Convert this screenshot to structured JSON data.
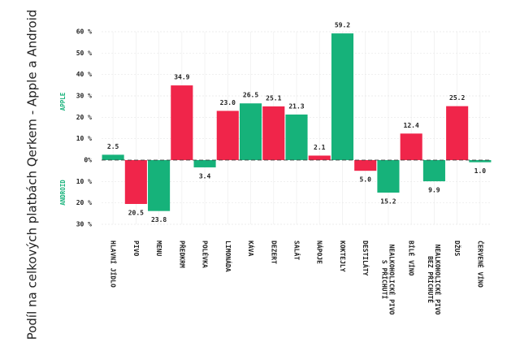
{
  "chart_data": {
    "type": "bar",
    "ylabel": "Podíl na celkových platbách Qerkem - Apple a Android",
    "side_labels": [
      "APPLE",
      "ANDROID"
    ],
    "categories": [
      "HLAVNÍ JÍDLO",
      "PIVO",
      "MENU",
      "PŘEDKRM",
      "POLÉVKA",
      "LIMONÁDA",
      "KÁVA",
      "DEZERT",
      "SALÁT",
      "NÁPOJE",
      "KOKTEJLY",
      "DESTILÁTY",
      [
        "NEALKOHOLICKÉ PIVO",
        "S PŘÍCHUTÍ"
      ],
      "BÍLÉ VÍNO",
      [
        "NEALKOHOLICKÉ PIVO",
        "BEZ PŘÍCHUTĚ"
      ],
      "DŽUS",
      "ČERVENÉ VÍNO"
    ],
    "values": [
      2.5,
      -20.5,
      -23.8,
      34.9,
      -3.4,
      23.0,
      26.5,
      25.1,
      21.3,
      2.1,
      59.2,
      -5.0,
      -15.2,
      12.4,
      -9.9,
      25.2,
      -1.0
    ],
    "value_labels": [
      "2.5",
      "20.5",
      "23.8",
      "34.9",
      "3.4",
      "23.0",
      "26.5",
      "25.1",
      "21.3",
      "2.1",
      "59.2",
      "5.0",
      "15.2",
      "12.4",
      "9.9",
      "25.2",
      "1.0"
    ],
    "colors": [
      "#16b27a",
      "#f0254a",
      "#16b27a",
      "#f0254a",
      "#16b27a",
      "#f0254a",
      "#16b27a",
      "#f0254a",
      "#16b27a",
      "#f0254a",
      "#16b27a",
      "#f0254a",
      "#16b27a",
      "#f0254a",
      "#16b27a",
      "#f0254a",
      "#16b27a"
    ],
    "ylim": [
      -30,
      60
    ],
    "yticks": [
      {
        "value": -30,
        "label": "30 %"
      },
      {
        "value": -20,
        "label": "20 %"
      },
      {
        "value": -10,
        "label": "10 %"
      },
      {
        "value": 0,
        "label": "0%"
      },
      {
        "value": 10,
        "label": "10 %"
      },
      {
        "value": 20,
        "label": "20 %"
      },
      {
        "value": 30,
        "label": "30 %"
      },
      {
        "value": 40,
        "label": "40 %"
      },
      {
        "value": 50,
        "label": "50 %"
      },
      {
        "value": 60,
        "label": "60 %"
      }
    ],
    "grid": true
  }
}
